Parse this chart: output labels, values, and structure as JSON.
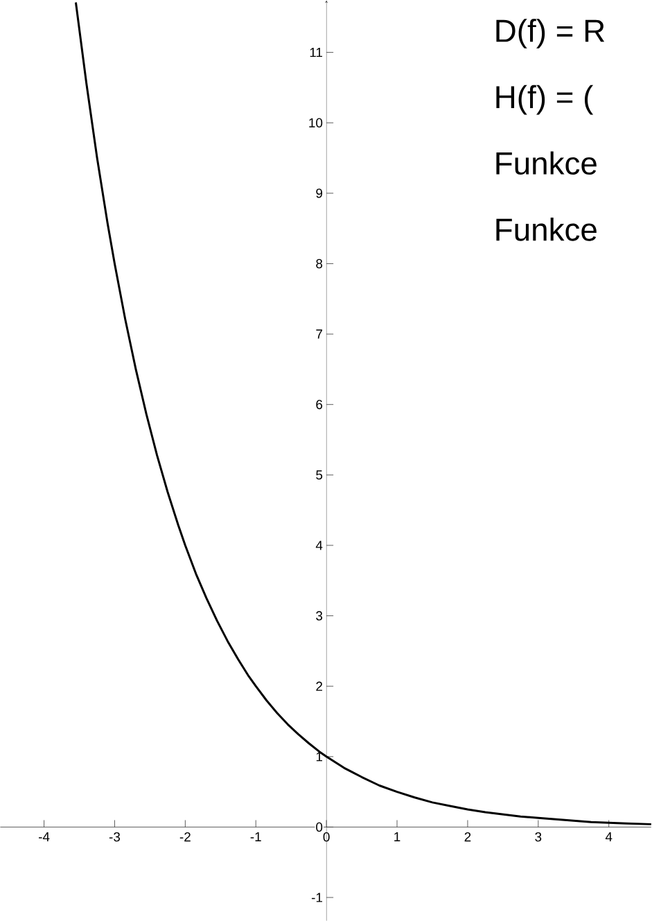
{
  "chart_data": {
    "type": "line",
    "annotations": [
      "D(f) = R",
      "H(f) = (",
      "Funkce",
      "Funkce"
    ],
    "xlim": [
      -4.62,
      4.6
    ],
    "ylim": [
      -1.33,
      11.74
    ],
    "xticks": [
      -4,
      -3,
      -2,
      -1,
      0,
      1,
      2,
      3,
      4
    ],
    "yticks": [
      -1,
      0,
      1,
      2,
      3,
      4,
      5,
      6,
      7,
      8,
      9,
      10,
      11
    ],
    "grid": false,
    "marker": "none",
    "line_style": "solid",
    "series": [
      {
        "color": "#000000",
        "x": [
          -3.55,
          -3.4,
          -3.25,
          -3.1,
          -3.0,
          -2.85,
          -2.7,
          -2.55,
          -2.4,
          -2.25,
          -2.1,
          -2.0,
          -1.85,
          -1.7,
          -1.55,
          -1.4,
          -1.25,
          -1.1,
          -1.0,
          -0.85,
          -0.7,
          -0.55,
          -0.4,
          -0.25,
          -0.1,
          0.0,
          0.25,
          0.5,
          0.75,
          1.0,
          1.25,
          1.5,
          1.75,
          2.0,
          2.25,
          2.5,
          2.75,
          3.0,
          3.25,
          3.5,
          3.75,
          4.0,
          4.25,
          4.6
        ],
        "values": [
          11.71,
          10.56,
          9.51,
          8.57,
          8.0,
          7.21,
          6.5,
          5.86,
          5.28,
          4.76,
          4.29,
          4.0,
          3.6,
          3.25,
          2.93,
          2.64,
          2.38,
          2.14,
          2.0,
          1.8,
          1.62,
          1.46,
          1.32,
          1.19,
          1.07,
          1.0,
          0.84,
          0.71,
          0.59,
          0.5,
          0.42,
          0.35,
          0.3,
          0.25,
          0.21,
          0.18,
          0.15,
          0.13,
          0.11,
          0.09,
          0.07,
          0.06,
          0.05,
          0.04
        ]
      }
    ]
  }
}
